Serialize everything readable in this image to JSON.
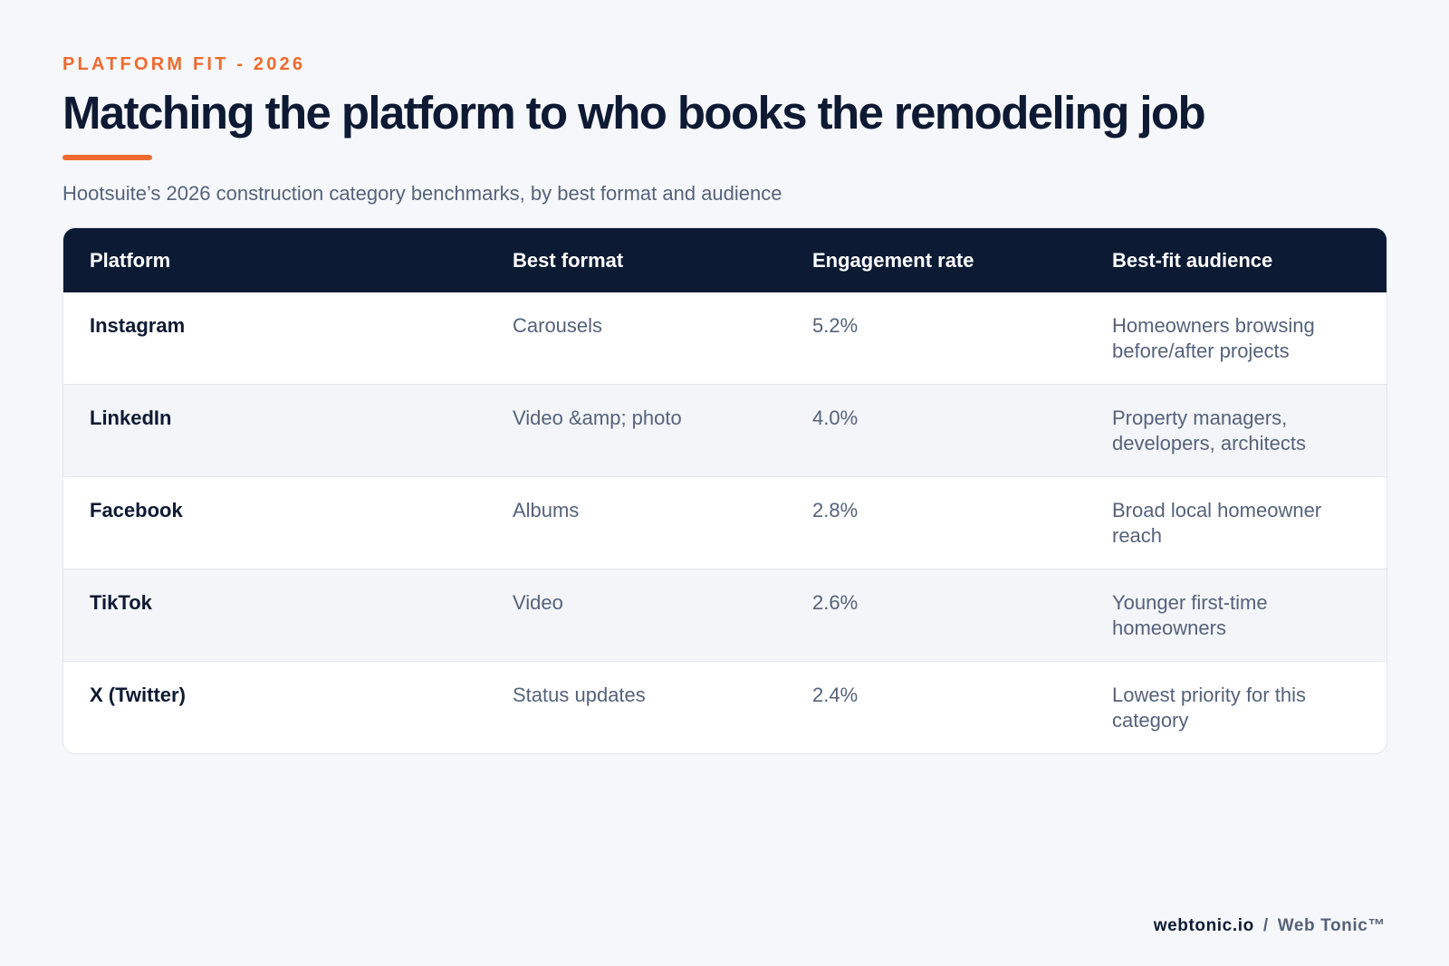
{
  "header": {
    "eyebrow": "PLATFORM FIT - 2026",
    "title": "Matching the platform to who books the remodeling job",
    "subtitle": "Hootsuite’s 2026 construction category benchmarks, by best format and audience"
  },
  "table": {
    "columns": [
      "Platform",
      "Best format",
      "Engagement rate",
      "Best-fit audience"
    ],
    "rows": [
      {
        "platform": "Instagram",
        "format": "Carousels",
        "engagement": "5.2%",
        "audience": "Homeowners browsing before/after projects"
      },
      {
        "platform": "LinkedIn",
        "format": "Video &amp; photo",
        "engagement": "4.0%",
        "audience": "Property managers, developers, architects"
      },
      {
        "platform": "Facebook",
        "format": "Albums",
        "engagement": "2.8%",
        "audience": "Broad local homeowner reach"
      },
      {
        "platform": "TikTok",
        "format": "Video",
        "engagement": "2.6%",
        "audience": "Younger first-time homeowners"
      },
      {
        "platform": "X (Twitter)",
        "format": "Status updates",
        "engagement": "2.4%",
        "audience": "Lowest priority for this category"
      }
    ]
  },
  "footer": {
    "domain": "webtonic.io",
    "separator": "/",
    "brand": "Web Tonic™"
  },
  "colors": {
    "accent": "#ef6a2e",
    "navy": "#0c1a34",
    "background": "#f5f7fa",
    "muted_text": "#56627a"
  }
}
